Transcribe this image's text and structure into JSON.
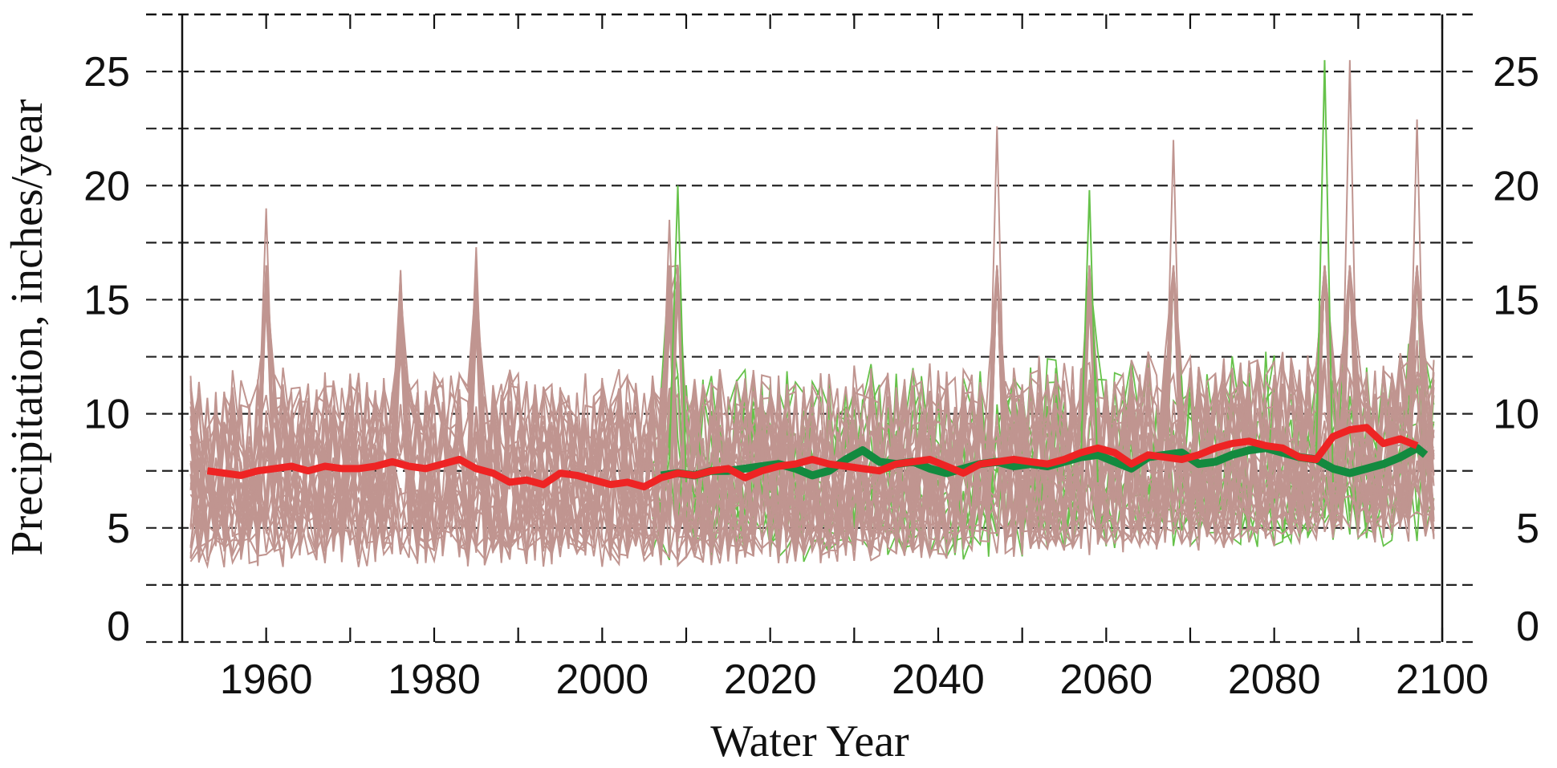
{
  "chart_data": {
    "type": "line",
    "title": "",
    "xlabel": "Water Year",
    "ylabel": "Precipitation, inches/year",
    "xlim": [
      1950,
      2100
    ],
    "ylim": [
      0,
      27.5
    ],
    "x_ticks": [
      1960,
      1980,
      2000,
      2020,
      2040,
      2060,
      2080,
      2100
    ],
    "x_tick_labels": [
      "1960",
      "1980",
      "2000",
      "2020",
      "2040",
      "2060",
      "2080",
      "2100"
    ],
    "y_ticks": [
      0,
      5,
      10,
      15,
      20,
      25
    ],
    "y_tick_labels": [
      "0",
      "5",
      "10",
      "15",
      "20",
      "25"
    ],
    "gridlines_y": [
      2.5,
      5,
      7.5,
      10,
      12.5,
      15,
      17.5,
      20,
      22.5,
      25
    ],
    "grid": true,
    "legend": "none",
    "colors": {
      "ensemble_projection": "#c09590",
      "ensemble_alt": "#66c24a",
      "mean_red": "#ee2424",
      "mean_green": "#138a3f"
    },
    "ensemble": {
      "description": "many model realizations shown as thin lines",
      "brown_range": [
        1951,
        2099
      ],
      "green_range": [
        2006,
        2099
      ],
      "brown_members": 30,
      "green_members": 10,
      "typical_range": [
        2.5,
        15
      ],
      "peaks": [
        {
          "x": 1960,
          "y": 19.0
        },
        {
          "x": 1976,
          "y": 16.3
        },
        {
          "x": 1985,
          "y": 17.3
        },
        {
          "x": 2008,
          "y": 18.5
        },
        {
          "x": 2009,
          "y": 20.0
        },
        {
          "x": 2047,
          "y": 22.6
        },
        {
          "x": 2058,
          "y": 19.8
        },
        {
          "x": 2068,
          "y": 22.0
        },
        {
          "x": 2086,
          "y": 25.5
        },
        {
          "x": 2089,
          "y": 25.5
        },
        {
          "x": 2097,
          "y": 22.9
        }
      ]
    },
    "series": [
      {
        "x": [
          1953,
          1955,
          1957,
          1959,
          1961,
          1963,
          1965,
          1967,
          1969,
          1971,
          1973,
          1975,
          1977,
          1979,
          1981,
          1983,
          1985,
          1987,
          1989,
          1991,
          1993,
          1995,
          1997,
          1999,
          2001,
          2003,
          2005,
          2007,
          2009,
          2011,
          2013,
          2015,
          2017,
          2019,
          2021,
          2023,
          2025,
          2027,
          2029,
          2031,
          2033,
          2035,
          2037,
          2039,
          2041,
          2043,
          2045,
          2047,
          2049,
          2051,
          2053,
          2055,
          2057,
          2059,
          2061,
          2063,
          2065,
          2067,
          2069,
          2071,
          2073,
          2075,
          2077,
          2079,
          2081,
          2083,
          2085,
          2087,
          2089,
          2091,
          2093,
          2095,
          2097
        ],
        "values": [
          7.5,
          7.4,
          7.3,
          7.5,
          7.6,
          7.7,
          7.5,
          7.7,
          7.6,
          7.6,
          7.7,
          7.9,
          7.7,
          7.6,
          7.8,
          8.0,
          7.6,
          7.4,
          7.0,
          7.1,
          6.9,
          7.4,
          7.3,
          7.1,
          6.9,
          7.0,
          6.8,
          7.2,
          7.4,
          7.3,
          7.5,
          7.6,
          7.2,
          7.5,
          7.7,
          7.8,
          8.0,
          7.8,
          7.7,
          7.6,
          7.5,
          7.8,
          7.9,
          8.0,
          7.7,
          7.4,
          7.8,
          7.9,
          8.0,
          7.9,
          7.8,
          8.0,
          8.3,
          8.5,
          8.3,
          7.8,
          8.2,
          8.1,
          8.0,
          8.2,
          8.5,
          8.7,
          8.8,
          8.6,
          8.5,
          8.1,
          8.0,
          9.0,
          9.3,
          9.4,
          8.7,
          8.9,
          8.6
        ]
      },
      {
        "x": [
          2007,
          2009,
          2011,
          2013,
          2015,
          2017,
          2019,
          2021,
          2023,
          2025,
          2027,
          2029,
          2031,
          2033,
          2035,
          2037,
          2039,
          2041,
          2043,
          2045,
          2047,
          2049,
          2051,
          2053,
          2055,
          2057,
          2059,
          2061,
          2063,
          2065,
          2067,
          2069,
          2071,
          2073,
          2075,
          2077,
          2079,
          2081,
          2083,
          2085,
          2087,
          2089,
          2091,
          2093,
          2095,
          2097,
          2098
        ],
        "values": [
          7.3,
          7.4,
          7.3,
          7.5,
          7.5,
          7.6,
          7.7,
          7.8,
          7.6,
          7.3,
          7.5,
          8.0,
          8.4,
          7.9,
          7.8,
          7.9,
          7.6,
          7.4,
          7.6,
          7.8,
          7.9,
          7.7,
          7.8,
          7.7,
          7.9,
          8.1,
          8.2,
          7.9,
          7.6,
          8.1,
          8.2,
          8.3,
          7.8,
          7.9,
          8.2,
          8.4,
          8.5,
          8.3,
          8.1,
          8.0,
          7.6,
          7.4,
          7.6,
          7.8,
          8.1,
          8.5,
          8.2
        ]
      }
    ]
  }
}
